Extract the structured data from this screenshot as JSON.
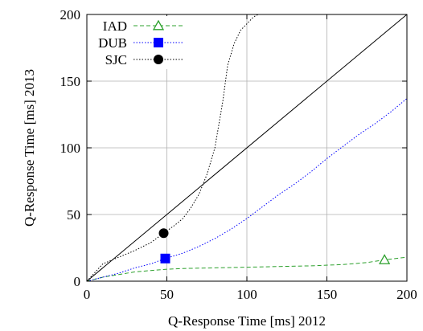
{
  "chart_data": {
    "type": "line",
    "title": "",
    "xlabel": "Q-Response Time [ms] 2012",
    "ylabel": "Q-Response Time [ms] 2013",
    "xlim": [
      0,
      200
    ],
    "ylim": [
      0,
      200
    ],
    "xticks": [
      "0",
      "50",
      "100",
      "150",
      "200"
    ],
    "yticks": [
      "0",
      "50",
      "100",
      "150",
      "200"
    ],
    "grid": true,
    "legend_position": "top-left",
    "series": [
      {
        "name": "IAD",
        "color": "#2ca02c",
        "line_style": "dashed",
        "marker": "open-triangle",
        "marker_point": [
          186,
          16
        ],
        "x": [
          0,
          10,
          20,
          30,
          40,
          50,
          60,
          80,
          100,
          120,
          140,
          160,
          175,
          186,
          200
        ],
        "y": [
          0,
          3,
          5,
          7,
          8,
          9,
          9.5,
          10,
          10.5,
          11,
          11.5,
          12.5,
          14,
          16,
          18
        ]
      },
      {
        "name": "DUB",
        "color": "#0000ff",
        "line_style": "dotted",
        "marker": "filled-square",
        "marker_point": [
          49,
          17
        ],
        "x": [
          0,
          10,
          20,
          30,
          40,
          49,
          60,
          70,
          80,
          90,
          100,
          110,
          120,
          130,
          140,
          150,
          160,
          170,
          180,
          190,
          200
        ],
        "y": [
          0,
          3,
          6,
          10,
          13,
          17,
          21,
          26,
          32,
          39,
          47,
          56,
          65,
          73,
          82,
          92,
          101,
          110,
          118,
          127,
          137
        ]
      },
      {
        "name": "SJC",
        "color": "#000000",
        "line_style": "dotted",
        "marker": "filled-circle",
        "marker_point": [
          48,
          36
        ],
        "x": [
          0,
          10,
          20,
          30,
          40,
          48,
          55,
          60,
          65,
          70,
          75,
          80,
          85,
          88,
          92,
          96,
          100,
          104,
          107
        ],
        "y": [
          0,
          13,
          18,
          23,
          29,
          36,
          42,
          47,
          55,
          65,
          80,
          100,
          135,
          162,
          178,
          188,
          193,
          198,
          200
        ]
      },
      {
        "name": "",
        "color": "#000000",
        "line_style": "solid",
        "marker": "none",
        "x": [
          0,
          200
        ],
        "y": [
          0,
          200
        ]
      }
    ]
  }
}
